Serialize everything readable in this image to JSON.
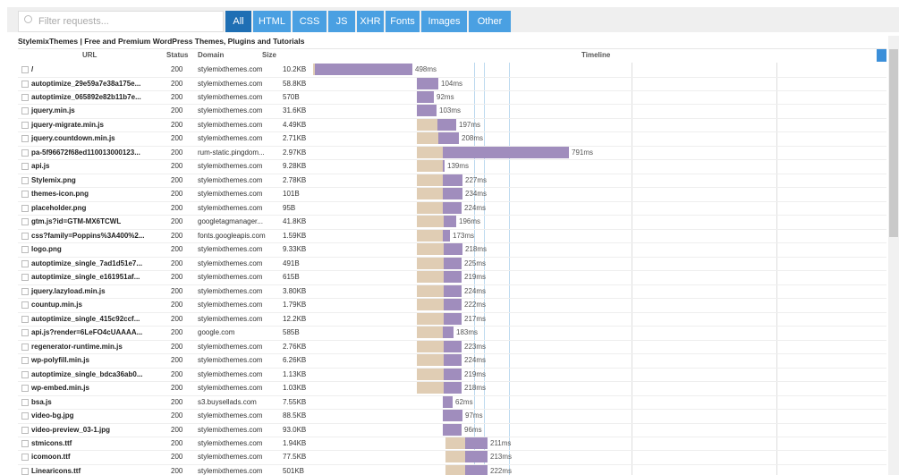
{
  "filter_placeholder": "Filter requests...",
  "filters": [
    "All",
    "HTML",
    "CSS",
    "JS",
    "XHR",
    "Fonts",
    "Images",
    "Other"
  ],
  "page_title": "StylemixThemes | Free and Premium WordPress Themes, Plugins and Tutorials",
  "columns": [
    "URL",
    "Status",
    "Domain",
    "Size",
    "Timeline"
  ],
  "rows": [
    {
      "url": "/",
      "status": "200",
      "domain": "stylemixthemes.com",
      "size": "10.2KB",
      "time": "498ms",
      "start": 0,
      "wait": 10,
      "receive": 545
    },
    {
      "url": "autoptimize_29e59a7e38a175e...",
      "status": "200",
      "domain": "stylemixthemes.com",
      "size": "58.8KB",
      "time": "104ms",
      "start": 580,
      "wait": 0,
      "receive": 120
    },
    {
      "url": "autoptimize_065892e82b11b7e...",
      "status": "200",
      "domain": "stylemixthemes.com",
      "size": "570B",
      "time": "92ms",
      "start": 580,
      "wait": 0,
      "receive": 95
    },
    {
      "url": "jquery.min.js",
      "status": "200",
      "domain": "stylemixthemes.com",
      "size": "31.6KB",
      "time": "103ms",
      "start": 580,
      "wait": 0,
      "receive": 110
    },
    {
      "url": "jquery-migrate.min.js",
      "status": "200",
      "domain": "stylemixthemes.com",
      "size": "4.49KB",
      "time": "197ms",
      "start": 580,
      "wait": 115,
      "receive": 105
    },
    {
      "url": "jquery.countdown.min.js",
      "status": "200",
      "domain": "stylemixthemes.com",
      "size": "2.71KB",
      "time": "208ms",
      "start": 580,
      "wait": 120,
      "receive": 115
    },
    {
      "url": "pa-5f96672f68ed110013000123...",
      "status": "200",
      "domain": "rum-static.pingdom...",
      "size": "2.97KB",
      "time": "791ms",
      "start": 580,
      "wait": 145,
      "receive": 705
    },
    {
      "url": "api.js",
      "status": "200",
      "domain": "stylemixthemes.com",
      "size": "9.28KB",
      "time": "139ms",
      "start": 580,
      "wait": 145,
      "receive": 10
    },
    {
      "url": "Stylemix.png",
      "status": "200",
      "domain": "stylemixthemes.com",
      "size": "2.78KB",
      "time": "227ms",
      "start": 580,
      "wait": 145,
      "receive": 110
    },
    {
      "url": "themes-icon.png",
      "status": "200",
      "domain": "stylemixthemes.com",
      "size": "101B",
      "time": "234ms",
      "start": 580,
      "wait": 145,
      "receive": 110
    },
    {
      "url": "placeholder.png",
      "status": "200",
      "domain": "stylemixthemes.com",
      "size": "95B",
      "time": "224ms",
      "start": 580,
      "wait": 145,
      "receive": 105
    },
    {
      "url": "gtm.js?id=GTM-MX6TCWL",
      "status": "200",
      "domain": "googletagmanager...",
      "size": "41.8KB",
      "time": "196ms",
      "start": 580,
      "wait": 150,
      "receive": 70
    },
    {
      "url": "css?family=Poppins%3A400%2...",
      "status": "200",
      "domain": "fonts.googleapis.com",
      "size": "1.59KB",
      "time": "173ms",
      "start": 580,
      "wait": 145,
      "receive": 40
    },
    {
      "url": "logo.png",
      "status": "200",
      "domain": "stylemixthemes.com",
      "size": "9.33KB",
      "time": "218ms",
      "start": 580,
      "wait": 150,
      "receive": 105
    },
    {
      "url": "autoptimize_single_7ad1d51e7...",
      "status": "200",
      "domain": "stylemixthemes.com",
      "size": "491B",
      "time": "225ms",
      "start": 580,
      "wait": 150,
      "receive": 100
    },
    {
      "url": "autoptimize_single_e161951af...",
      "status": "200",
      "domain": "stylemixthemes.com",
      "size": "615B",
      "time": "219ms",
      "start": 580,
      "wait": 150,
      "receive": 100
    },
    {
      "url": "jquery.lazyload.min.js",
      "status": "200",
      "domain": "stylemixthemes.com",
      "size": "3.80KB",
      "time": "224ms",
      "start": 580,
      "wait": 150,
      "receive": 100
    },
    {
      "url": "countup.min.js",
      "status": "200",
      "domain": "stylemixthemes.com",
      "size": "1.79KB",
      "time": "222ms",
      "start": 580,
      "wait": 150,
      "receive": 100
    },
    {
      "url": "autoptimize_single_415c92ccf...",
      "status": "200",
      "domain": "stylemixthemes.com",
      "size": "12.2KB",
      "time": "217ms",
      "start": 580,
      "wait": 150,
      "receive": 100
    },
    {
      "url": "api.js?render=6LeFO4cUAAAA...",
      "status": "200",
      "domain": "google.com",
      "size": "585B",
      "time": "183ms",
      "start": 580,
      "wait": 145,
      "receive": 60
    },
    {
      "url": "regenerator-runtime.min.js",
      "status": "200",
      "domain": "stylemixthemes.com",
      "size": "2.76KB",
      "time": "223ms",
      "start": 580,
      "wait": 150,
      "receive": 100
    },
    {
      "url": "wp-polyfill.min.js",
      "status": "200",
      "domain": "stylemixthemes.com",
      "size": "6.26KB",
      "time": "224ms",
      "start": 580,
      "wait": 150,
      "receive": 100
    },
    {
      "url": "autoptimize_single_bdca36ab0...",
      "status": "200",
      "domain": "stylemixthemes.com",
      "size": "1.13KB",
      "time": "219ms",
      "start": 580,
      "wait": 150,
      "receive": 100
    },
    {
      "url": "wp-embed.min.js",
      "status": "200",
      "domain": "stylemixthemes.com",
      "size": "1.03KB",
      "time": "218ms",
      "start": 580,
      "wait": 150,
      "receive": 100
    },
    {
      "url": "bsa.js",
      "status": "200",
      "domain": "s3.buysellads.com",
      "size": "7.55KB",
      "time": "62ms",
      "start": 725,
      "wait": 0,
      "receive": 55
    },
    {
      "url": "video-bg.jpg",
      "status": "200",
      "domain": "stylemixthemes.com",
      "size": "88.5KB",
      "time": "97ms",
      "start": 725,
      "wait": 0,
      "receive": 110
    },
    {
      "url": "video-preview_03-1.jpg",
      "status": "200",
      "domain": "stylemixthemes.com",
      "size": "93.0KB",
      "time": "96ms",
      "start": 725,
      "wait": 0,
      "receive": 105
    },
    {
      "url": "stmicons.ttf",
      "status": "200",
      "domain": "stylemixthemes.com",
      "size": "1.94KB",
      "time": "211ms",
      "start": 740,
      "wait": 110,
      "receive": 125
    },
    {
      "url": "icomoon.ttf",
      "status": "200",
      "domain": "stylemixthemes.com",
      "size": "77.5KB",
      "time": "213ms",
      "start": 740,
      "wait": 110,
      "receive": 125
    },
    {
      "url": "Linearicons.ttf",
      "status": "200",
      "domain": "stylemixthemes.com",
      "size": "501KB",
      "time": "222ms",
      "start": 740,
      "wait": 110,
      "receive": 125
    }
  ]
}
